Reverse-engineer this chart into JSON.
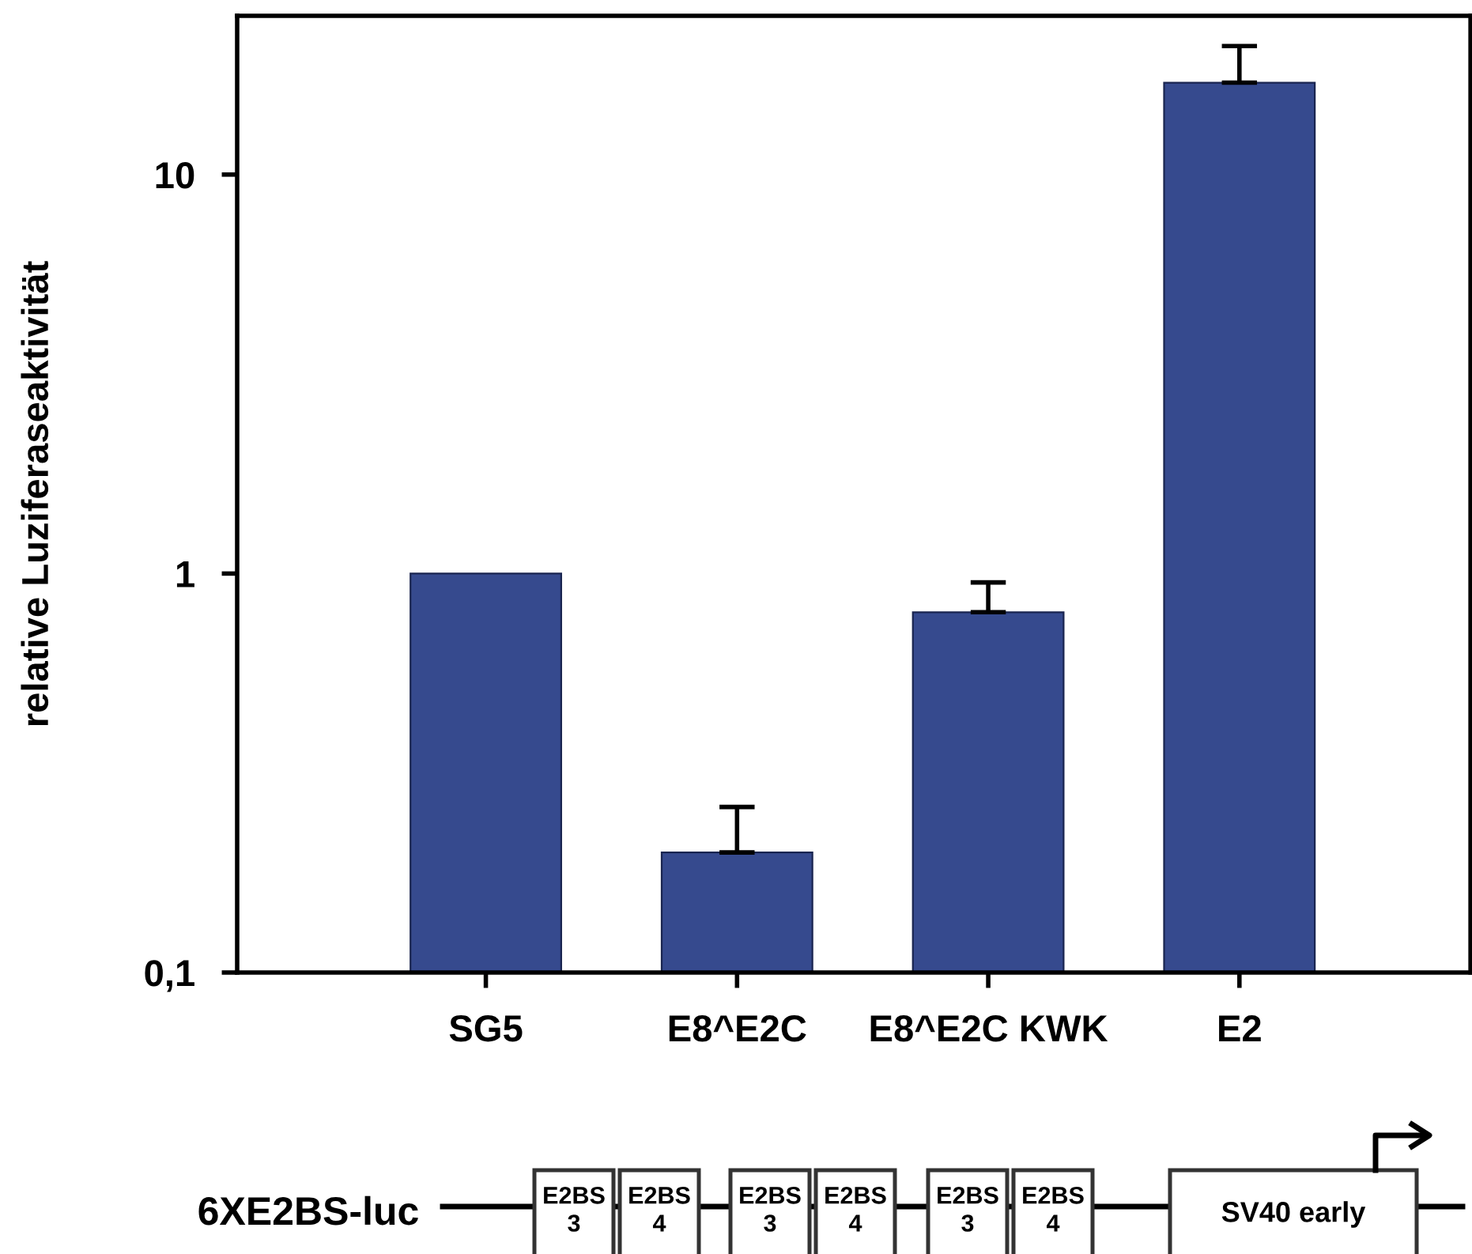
{
  "chart_data": {
    "type": "bar",
    "ylabel": "relative Luziferaseaktivität",
    "categories": [
      "SG5",
      "E8^E2C",
      "E8^E2C KWK",
      "E2"
    ],
    "values": [
      1,
      0.2,
      0.8,
      17
    ],
    "errors": [
      null,
      [
        0.2,
        0.26
      ],
      [
        0.8,
        0.95
      ],
      [
        17,
        21
      ]
    ],
    "color": "#364a8e",
    "log": true,
    "ylim": [
      0.1,
      25
    ],
    "yticks": [
      {
        "value": 0.1,
        "label": "0,1"
      },
      1,
      10
    ],
    "grid": false,
    "legend": false,
    "annotations": [
      "6XE2BS-luc",
      "E2BS\n3",
      "E2BS\n4",
      "E2BS\n3",
      "E2BS\n4",
      "E2BS\n3",
      "E2BS\n4",
      "SV40 early"
    ]
  }
}
